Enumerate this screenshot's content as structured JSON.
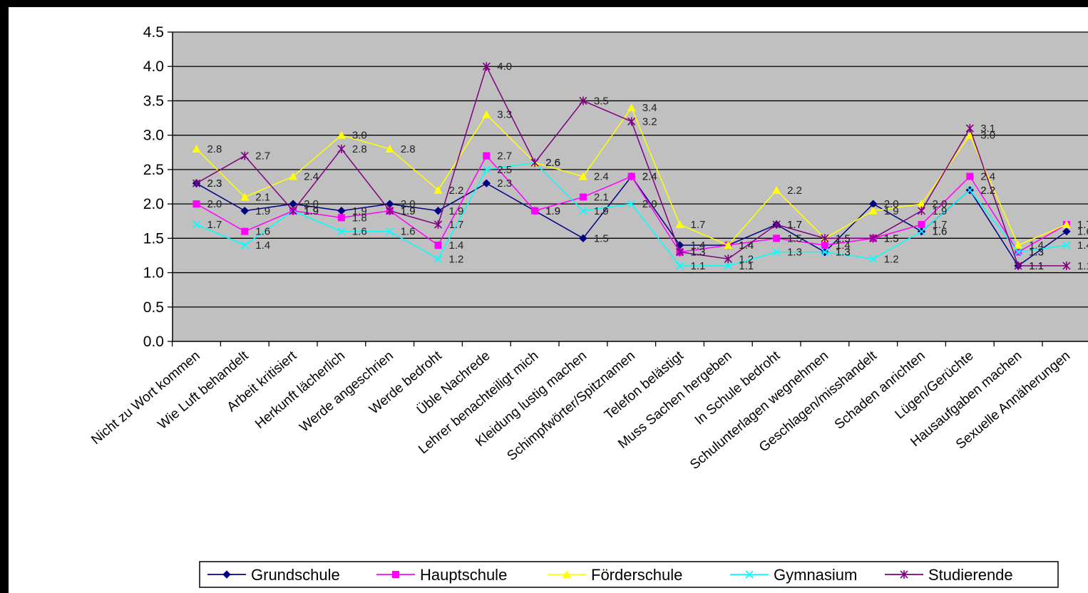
{
  "chart_data": {
    "type": "line",
    "title": "",
    "xlabel": "",
    "ylabel": "",
    "ylim": [
      0,
      4.5
    ],
    "yticks": [
      "0.0",
      "0.5",
      "1.0",
      "1.5",
      "2.0",
      "2.5",
      "3.0",
      "3.5",
      "4.0",
      "4.5"
    ],
    "grid": true,
    "legend_position": "bottom",
    "plot_background": "#c0c0c0",
    "categories": [
      "Nicht zu Wort kommen",
      "Wie Luft behandelt",
      "Arbeit kritisiert",
      "Herkunft lächerlich",
      "Werde angeschrien",
      "Werde bedroht",
      "Üble Nachrede",
      "Lehrer benachteiligt mich",
      "Kleidung lustig machen",
      "Schimpfwörter/Spitznamen",
      "Telefon belästigt",
      "Muss Sachen hergeben",
      "In Schule bedroht",
      "Schulunterlagen wegnehmen",
      "Geschlagen/misshandelt",
      "Schaden anrichten",
      "Lügen/Gerüchte",
      "Hausaufgaben machen",
      "Sexuelle Annäherungen"
    ],
    "series": [
      {
        "name": "Grundschule",
        "color": "#000080",
        "marker": "diamond",
        "values": [
          2.3,
          1.9,
          2.0,
          1.9,
          2.0,
          1.9,
          2.3,
          1.9,
          1.5,
          2.4,
          1.4,
          1.4,
          1.7,
          1.3,
          2.0,
          1.6,
          2.2,
          1.1,
          1.6
        ]
      },
      {
        "name": "Hauptschule",
        "color": "#ff00ff",
        "marker": "square",
        "values": [
          2.0,
          1.6,
          1.9,
          1.8,
          1.9,
          1.4,
          2.7,
          1.9,
          2.1,
          2.4,
          1.3,
          1.4,
          1.5,
          1.4,
          1.5,
          1.7,
          2.4,
          1.3,
          1.7
        ]
      },
      {
        "name": "Förderschule",
        "color": "#ffff00",
        "marker": "triangle",
        "values": [
          2.8,
          2.1,
          2.4,
          3.0,
          2.8,
          2.2,
          3.3,
          2.6,
          2.4,
          3.4,
          1.7,
          1.4,
          2.2,
          1.5,
          1.9,
          2.0,
          3.0,
          1.4,
          1.7
        ]
      },
      {
        "name": "Gymnasium",
        "color": "#00ffff",
        "marker": "x",
        "values": [
          1.7,
          1.4,
          1.9,
          1.6,
          1.6,
          1.2,
          2.5,
          2.6,
          1.9,
          2.0,
          1.1,
          1.1,
          1.3,
          1.3,
          1.2,
          1.6,
          2.2,
          1.3,
          1.4
        ]
      },
      {
        "name": "Studierende",
        "color": "#800080",
        "marker": "star",
        "values": [
          2.3,
          2.7,
          1.9,
          2.8,
          1.9,
          1.7,
          4.0,
          2.6,
          3.5,
          3.2,
          1.3,
          1.2,
          1.7,
          1.5,
          1.5,
          1.9,
          3.1,
          1.1,
          1.1
        ]
      }
    ]
  }
}
